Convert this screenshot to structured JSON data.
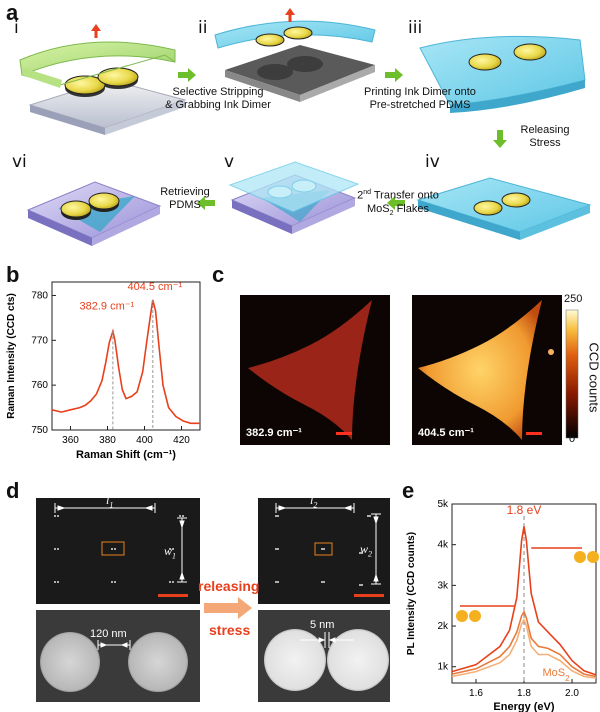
{
  "panel_a": {
    "label": "a",
    "steps": [
      "i",
      "ii",
      "iii",
      "iv",
      "v",
      "vi"
    ],
    "captions": {
      "selective": "Selective Stripping\n& Grabbing Ink Dimer",
      "printing": "Printing Ink Dimer onto\nPre-stretched PDMS",
      "releasing": "Releasing\nStress",
      "transfer_pre": "2",
      "transfer_sup": "nd",
      "transfer_rest": " Transfer onto",
      "transfer_line2_pre": "MoS",
      "transfer_line2_sub": "2",
      "transfer_line2_post": " Flakes",
      "retrieving": "Retrieving\nPDMS"
    }
  },
  "panel_b": {
    "label": "b",
    "chart_data": {
      "type": "line",
      "xlabel": "Raman Shift (cm⁻¹)",
      "ylabel": "Raman Intensity (CCD cts)",
      "xlim": [
        350,
        430
      ],
      "ylim": [
        750,
        783
      ],
      "xticks": [
        360,
        380,
        400,
        420
      ],
      "yticks": [
        750,
        760,
        770,
        780
      ],
      "peaks": [
        {
          "x": 382.9,
          "y": 772,
          "label": "382.9 cm⁻¹"
        },
        {
          "x": 404.5,
          "y": 779,
          "label": "404.5 cm⁻¹"
        }
      ],
      "series": [
        {
          "color": "#e8401c",
          "x": [
            350,
            355,
            360,
            365,
            368,
            371,
            374,
            377,
            379,
            381,
            382.9,
            384,
            386,
            388,
            390,
            393,
            396,
            399,
            401,
            403,
            404.5,
            406,
            408,
            410,
            413,
            417,
            421,
            425,
            430
          ],
          "y": [
            754.5,
            754,
            754.5,
            755,
            755.5,
            756.5,
            758,
            761,
            765,
            769.5,
            772,
            770,
            764,
            759,
            757,
            757.5,
            758.5,
            763,
            769,
            775,
            779,
            776.5,
            768,
            760,
            755,
            753,
            752,
            751.5,
            751.5
          ]
        }
      ]
    }
  },
  "panel_c": {
    "label": "c",
    "maps": [
      {
        "label": "382.9 cm⁻¹"
      },
      {
        "label": "404.5 cm⁻¹"
      }
    ],
    "colorbar": {
      "max": "250",
      "min": "0",
      "title": "CCD counts"
    }
  },
  "panel_d": {
    "label": "d",
    "l1": "l",
    "l1_sub": "1",
    "w1": "w",
    "w1_sub": "1",
    "l2": "l",
    "l2_sub": "2",
    "w2": "w",
    "w2_sub": "2",
    "gap1": "120 nm",
    "gap2": "5 nm",
    "arrow_text_1": "releasing",
    "arrow_text_2": "stress"
  },
  "panel_e": {
    "label": "e",
    "chart_data": {
      "type": "line",
      "xlabel": "Energy (eV)",
      "ylabel": "PL Intensity (CCD counts)",
      "xlim": [
        1.5,
        2.1
      ],
      "ylim": [
        600,
        5000
      ],
      "xticks": [
        1.6,
        1.8,
        2.0
      ],
      "yticks": [
        1000,
        2000,
        3000,
        4000,
        5000
      ],
      "ytick_labels": [
        "1k",
        "2k",
        "3k",
        "4k",
        "5k"
      ],
      "annotation": "1.8 eV",
      "mos2_label": "MoS",
      "mos2_sub": "2",
      "series": [
        {
          "color": "#e8401c",
          "x": [
            1.5,
            1.6,
            1.7,
            1.74,
            1.77,
            1.79,
            1.8,
            1.81,
            1.83,
            1.86,
            1.9,
            1.95,
            2.0,
            2.05,
            2.1
          ],
          "y": [
            880,
            1050,
            1500,
            1900,
            2700,
            4100,
            4450,
            4100,
            2800,
            2100,
            1850,
            1550,
            1150,
            900,
            800
          ]
        },
        {
          "color": "#e97a3a",
          "x": [
            1.5,
            1.6,
            1.7,
            1.74,
            1.77,
            1.79,
            1.8,
            1.81,
            1.83,
            1.86,
            1.9,
            1.95,
            2.0,
            2.05,
            2.1
          ],
          "y": [
            820,
            950,
            1250,
            1500,
            1850,
            2250,
            2350,
            2200,
            1700,
            1500,
            1450,
            1300,
            1000,
            820,
            760
          ]
        },
        {
          "color": "#f4b07a",
          "x": [
            1.5,
            1.6,
            1.7,
            1.74,
            1.77,
            1.79,
            1.8,
            1.81,
            1.83,
            1.86,
            1.9,
            1.95,
            2.0,
            2.05,
            2.1
          ],
          "y": [
            760,
            880,
            1100,
            1300,
            1650,
            2050,
            2150,
            2000,
            1500,
            1300,
            1300,
            1150,
            900,
            760,
            720
          ]
        }
      ]
    }
  }
}
